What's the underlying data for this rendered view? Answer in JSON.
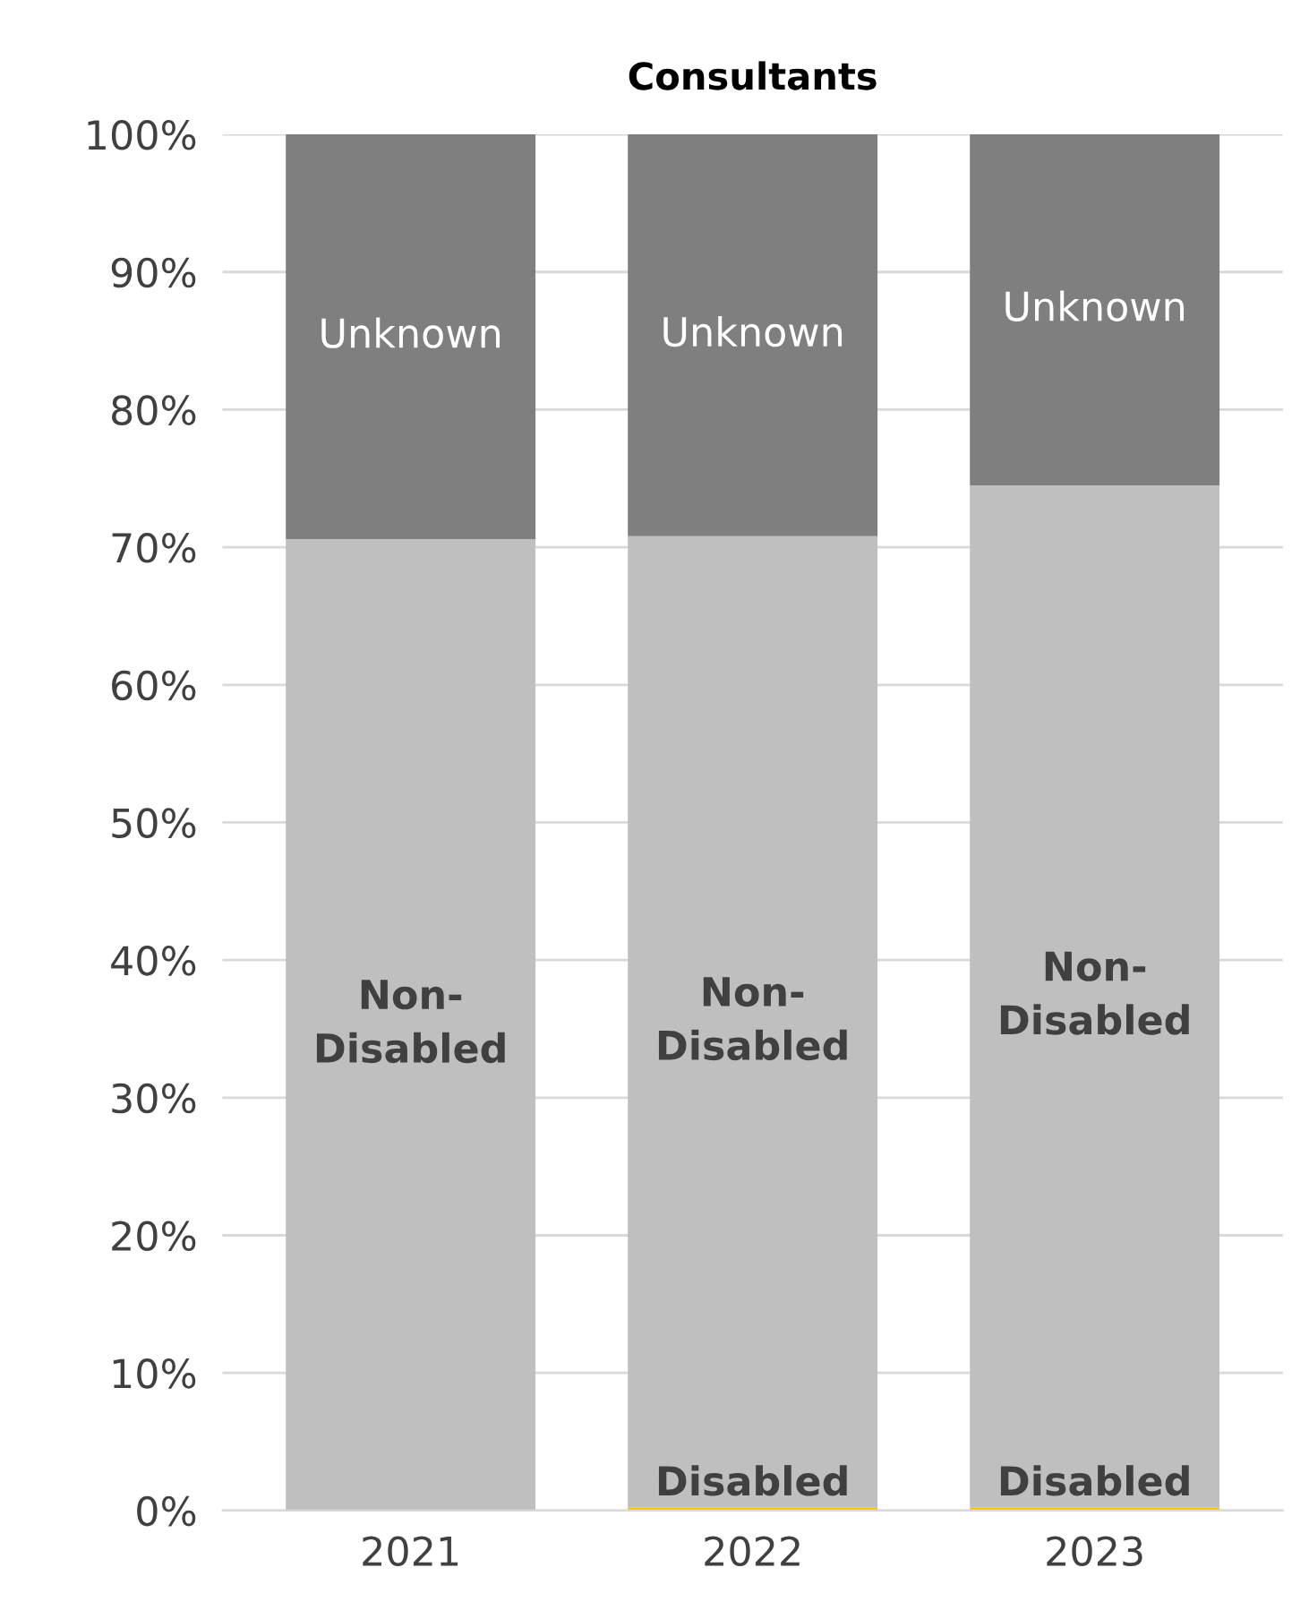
{
  "chart_data": {
    "type": "bar",
    "stacked": true,
    "title": "Consultants",
    "categories": [
      "2021",
      "2022",
      "2023"
    ],
    "series": [
      {
        "name": "Disabled",
        "color": "#ffc000",
        "values": [
          0,
          0.2,
          0.2
        ]
      },
      {
        "name": "Non-\nDisabled",
        "color": "#bfbfbf",
        "values": [
          70.6,
          70.6,
          74.3
        ]
      },
      {
        "name": "Unknown",
        "color": "#7f7f7f",
        "values": [
          29.4,
          29.2,
          25.5
        ]
      }
    ],
    "ylim": [
      0,
      100
    ],
    "yticks": [
      {
        "value": 0,
        "label": "0%"
      },
      {
        "value": 10,
        "label": "10%"
      },
      {
        "value": 20,
        "label": "20%"
      },
      {
        "value": 30,
        "label": "30%"
      },
      {
        "value": 40,
        "label": "40%"
      },
      {
        "value": 50,
        "label": "50%"
      },
      {
        "value": 60,
        "label": "60%"
      },
      {
        "value": 70,
        "label": "70%"
      },
      {
        "value": 80,
        "label": "80%"
      },
      {
        "value": 90,
        "label": "90%"
      },
      {
        "value": 100,
        "label": "100%"
      }
    ],
    "grid": "y",
    "legend": false
  }
}
